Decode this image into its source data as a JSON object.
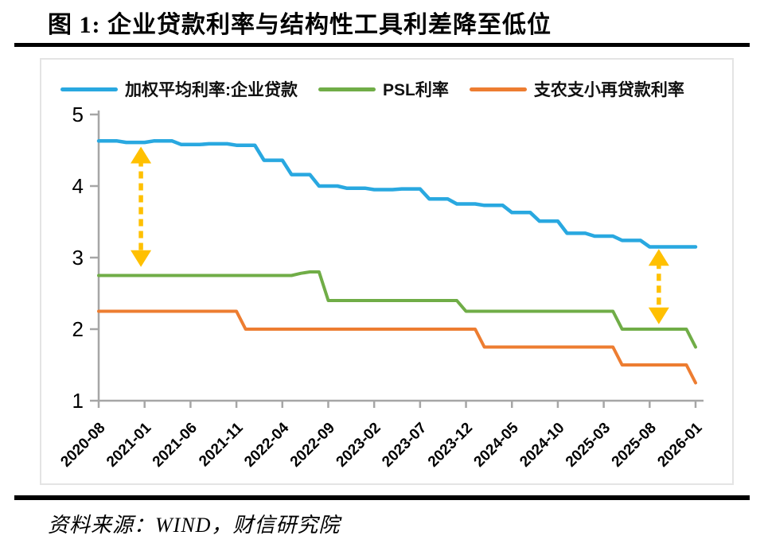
{
  "figure": {
    "title": "图 1:  企业贷款利率与结构性工具利差降至低位",
    "source": "资料来源：WIND，财信研究院"
  },
  "colors": {
    "blue_series": "#29a8e0",
    "green_series": "#70ad47",
    "orange_series": "#ed7d31",
    "arrow_yellow": "#ffc000",
    "axis_gray": "#a6a6a6",
    "box_border": "#e4e4e4",
    "text": "#000000"
  },
  "chart_data": {
    "type": "line",
    "title": "",
    "xlabel": "",
    "ylabel": "",
    "ylim": [
      1,
      5
    ],
    "y_ticks": [
      1,
      2,
      3,
      4,
      5
    ],
    "grid": false,
    "legend_position": "top",
    "x_start": "2020-08",
    "x_interval_months": 1,
    "x_points_total": 66,
    "x_tick_every_months": 5,
    "x_tick_labels": [
      "2020-08",
      "2021-01",
      "2021-06",
      "2021-11",
      "2022-04",
      "2022-09",
      "2023-02",
      "2023-07",
      "2023-12",
      "2024-05",
      "2024-10",
      "2025-03",
      "2025-08",
      "2026-01"
    ],
    "series": [
      {
        "name": "加权平均利率:企业贷款",
        "color": "#29a8e0",
        "values": [
          4.63,
          4.63,
          4.63,
          4.61,
          4.61,
          4.61,
          4.63,
          4.63,
          4.63,
          4.58,
          4.58,
          4.58,
          4.59,
          4.59,
          4.59,
          4.57,
          4.57,
          4.57,
          4.36,
          4.36,
          4.36,
          4.16,
          4.16,
          4.16,
          4.0,
          4.0,
          4.0,
          3.97,
          3.97,
          3.97,
          3.95,
          3.95,
          3.95,
          3.96,
          3.96,
          3.96,
          3.82,
          3.82,
          3.82,
          3.75,
          3.75,
          3.75,
          3.73,
          3.73,
          3.73,
          3.63,
          3.63,
          3.63,
          3.51,
          3.51,
          3.51,
          3.34,
          3.34,
          3.34,
          3.3,
          3.3,
          3.3,
          3.24,
          3.24,
          3.24,
          3.15,
          3.15,
          3.15,
          3.15,
          3.15,
          3.15
        ]
      },
      {
        "name": "PSL利率",
        "color": "#70ad47",
        "values": [
          2.75,
          2.75,
          2.75,
          2.75,
          2.75,
          2.75,
          2.75,
          2.75,
          2.75,
          2.75,
          2.75,
          2.75,
          2.75,
          2.75,
          2.75,
          2.75,
          2.75,
          2.75,
          2.75,
          2.75,
          2.75,
          2.75,
          2.78,
          2.8,
          2.8,
          2.4,
          2.4,
          2.4,
          2.4,
          2.4,
          2.4,
          2.4,
          2.4,
          2.4,
          2.4,
          2.4,
          2.4,
          2.4,
          2.4,
          2.4,
          2.25,
          2.25,
          2.25,
          2.25,
          2.25,
          2.25,
          2.25,
          2.25,
          2.25,
          2.25,
          2.25,
          2.25,
          2.25,
          2.25,
          2.25,
          2.25,
          2.25,
          2.0,
          2.0,
          2.0,
          2.0,
          2.0,
          2.0,
          2.0,
          2.0,
          1.75
        ]
      },
      {
        "name": "支农支小再贷款利率",
        "color": "#ed7d31",
        "values": [
          2.25,
          2.25,
          2.25,
          2.25,
          2.25,
          2.25,
          2.25,
          2.25,
          2.25,
          2.25,
          2.25,
          2.25,
          2.25,
          2.25,
          2.25,
          2.25,
          2.0,
          2.0,
          2.0,
          2.0,
          2.0,
          2.0,
          2.0,
          2.0,
          2.0,
          2.0,
          2.0,
          2.0,
          2.0,
          2.0,
          2.0,
          2.0,
          2.0,
          2.0,
          2.0,
          2.0,
          2.0,
          2.0,
          2.0,
          2.0,
          2.0,
          2.0,
          1.75,
          1.75,
          1.75,
          1.75,
          1.75,
          1.75,
          1.75,
          1.75,
          1.75,
          1.75,
          1.75,
          1.75,
          1.75,
          1.75,
          1.75,
          1.5,
          1.5,
          1.5,
          1.5,
          1.5,
          1.5,
          1.5,
          1.5,
          1.25
        ]
      }
    ],
    "annotations": [
      {
        "type": "double-arrow",
        "style": "dashed",
        "color": "#ffc000",
        "x_month": 4.6,
        "value_from": 4.55,
        "value_to": 2.87
      },
      {
        "type": "double-arrow",
        "style": "dashed",
        "color": "#ffc000",
        "x_month": 61.0,
        "value_from": 3.12,
        "value_to": 2.07
      }
    ]
  }
}
